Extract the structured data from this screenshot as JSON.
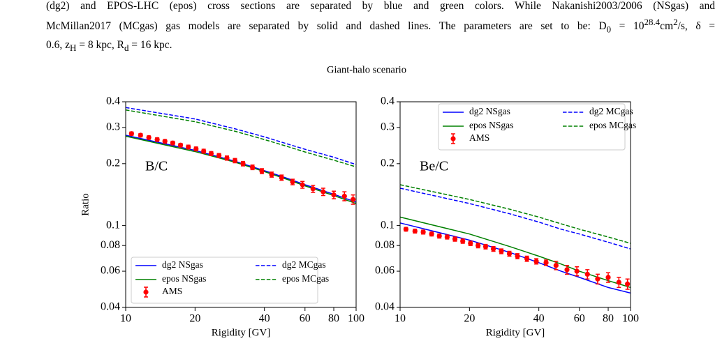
{
  "caption": {
    "runs": [
      "(dg2) and EPOS-LHC (epos) cross sections are separated by blue and green colors. While Nakanishi2003/2006 (NSgas) and",
      "McMillan2017 (MCgas) gas models are separated by solid and dashed lines. The parameters are set to be: D",
      "0",
      " = 10",
      "28.4",
      "cm",
      "2",
      "/s, δ =",
      "0.6, z",
      "H",
      " = 8 kpc, R",
      "d",
      " = 16 kpc."
    ]
  },
  "figure_title": "Giant-halo scenario",
  "chart_data": [
    {
      "type": "line",
      "label": "B/C",
      "xlabel": "Rigidity [GV]",
      "ylabel": "Ratio",
      "xlim": [
        10,
        100
      ],
      "ylim": [
        0.04,
        0.4
      ],
      "log_x": true,
      "log_y": true,
      "xticks": [
        10,
        20,
        40,
        60,
        80,
        100
      ],
      "yticks": [
        0.04,
        0.06,
        0.08,
        0.1,
        0.2,
        0.3,
        0.4
      ],
      "legend": "lower left",
      "x": [
        10,
        20,
        30,
        40,
        50,
        60,
        80,
        100
      ],
      "series": [
        {
          "name": "dg2 NSgas",
          "color": "#0000ff",
          "dashed": false,
          "values": [
            0.275,
            0.232,
            0.205,
            0.185,
            0.17,
            0.158,
            0.142,
            0.13
          ]
        },
        {
          "name": "dg2 MCgas",
          "color": "#0000ff",
          "dashed": true,
          "values": [
            0.375,
            0.33,
            0.295,
            0.27,
            0.25,
            0.235,
            0.215,
            0.198
          ]
        },
        {
          "name": "epos NSgas",
          "color": "#008000",
          "dashed": false,
          "values": [
            0.272,
            0.229,
            0.203,
            0.183,
            0.168,
            0.156,
            0.14,
            0.128
          ]
        },
        {
          "name": "epos MCgas",
          "color": "#008000",
          "dashed": true,
          "values": [
            0.365,
            0.32,
            0.287,
            0.262,
            0.243,
            0.228,
            0.208,
            0.193
          ]
        }
      ],
      "points": {
        "name": "AMS",
        "color": "#ff0000",
        "x": [
          10.6,
          11.6,
          12.6,
          13.7,
          14.8,
          16,
          17.3,
          18.7,
          20.2,
          21.8,
          23.5,
          25.4,
          27.5,
          29.8,
          32.3,
          35.5,
          39,
          43,
          47.5,
          53,
          58.5,
          65,
          72,
          80,
          89,
          97
        ],
        "values": [
          0.28,
          0.275,
          0.268,
          0.262,
          0.257,
          0.252,
          0.246,
          0.241,
          0.236,
          0.23,
          0.224,
          0.219,
          0.213,
          0.207,
          0.2,
          0.192,
          0.184,
          0.177,
          0.171,
          0.163,
          0.158,
          0.151,
          0.146,
          0.141,
          0.139,
          0.134
        ],
        "errors": [
          0.005,
          0.005,
          0.005,
          0.005,
          0.005,
          0.005,
          0.005,
          0.005,
          0.005,
          0.005,
          0.005,
          0.005,
          0.005,
          0.005,
          0.005,
          0.005,
          0.005,
          0.005,
          0.005,
          0.005,
          0.006,
          0.006,
          0.006,
          0.006,
          0.007,
          0.007
        ]
      }
    },
    {
      "type": "line",
      "label": "Be/C",
      "xlabel": "Rigidity [GV]",
      "xlim": [
        10,
        100
      ],
      "ylim": [
        0.04,
        0.4
      ],
      "log_x": true,
      "log_y": true,
      "xticks": [
        10,
        20,
        40,
        60,
        80,
        100
      ],
      "yticks": [
        0.04,
        0.06,
        0.08,
        0.1,
        0.2,
        0.3,
        0.4
      ],
      "legend": "upper right",
      "x": [
        10,
        20,
        30,
        40,
        50,
        60,
        80,
        100
      ],
      "series": [
        {
          "name": "dg2 NSgas",
          "color": "#0000ff",
          "dashed": false,
          "values": [
            0.103,
            0.085,
            0.074,
            0.066,
            0.06,
            0.056,
            0.05,
            0.047
          ]
        },
        {
          "name": "dg2 MCgas",
          "color": "#0000ff",
          "dashed": true,
          "values": [
            0.152,
            0.128,
            0.114,
            0.104,
            0.096,
            0.091,
            0.083,
            0.077
          ]
        },
        {
          "name": "epos NSgas",
          "color": "#008000",
          "dashed": false,
          "values": [
            0.11,
            0.091,
            0.079,
            0.071,
            0.065,
            0.06,
            0.054,
            0.05
          ]
        },
        {
          "name": "epos MCgas",
          "color": "#008000",
          "dashed": true,
          "values": [
            0.158,
            0.134,
            0.12,
            0.11,
            0.102,
            0.096,
            0.088,
            0.082
          ]
        }
      ],
      "points": {
        "name": "AMS",
        "color": "#ff0000",
        "x": [
          10.6,
          11.6,
          12.6,
          13.7,
          14.8,
          16,
          17.3,
          18.7,
          20.2,
          21.8,
          23.5,
          25.4,
          27.5,
          29.8,
          32.3,
          35.5,
          39,
          43,
          47.5,
          53,
          58.5,
          65,
          72,
          80,
          89,
          97
        ],
        "values": [
          0.096,
          0.094,
          0.093,
          0.091,
          0.089,
          0.088,
          0.086,
          0.084,
          0.082,
          0.08,
          0.079,
          0.077,
          0.075,
          0.073,
          0.071,
          0.069,
          0.067,
          0.066,
          0.064,
          0.061,
          0.06,
          0.058,
          0.055,
          0.056,
          0.053,
          0.052
        ],
        "errors": [
          0.002,
          0.002,
          0.002,
          0.002,
          0.002,
          0.002,
          0.002,
          0.002,
          0.002,
          0.002,
          0.002,
          0.002,
          0.002,
          0.002,
          0.002,
          0.002,
          0.002,
          0.002,
          0.003,
          0.003,
          0.003,
          0.003,
          0.003,
          0.003,
          0.003,
          0.003
        ]
      }
    }
  ]
}
